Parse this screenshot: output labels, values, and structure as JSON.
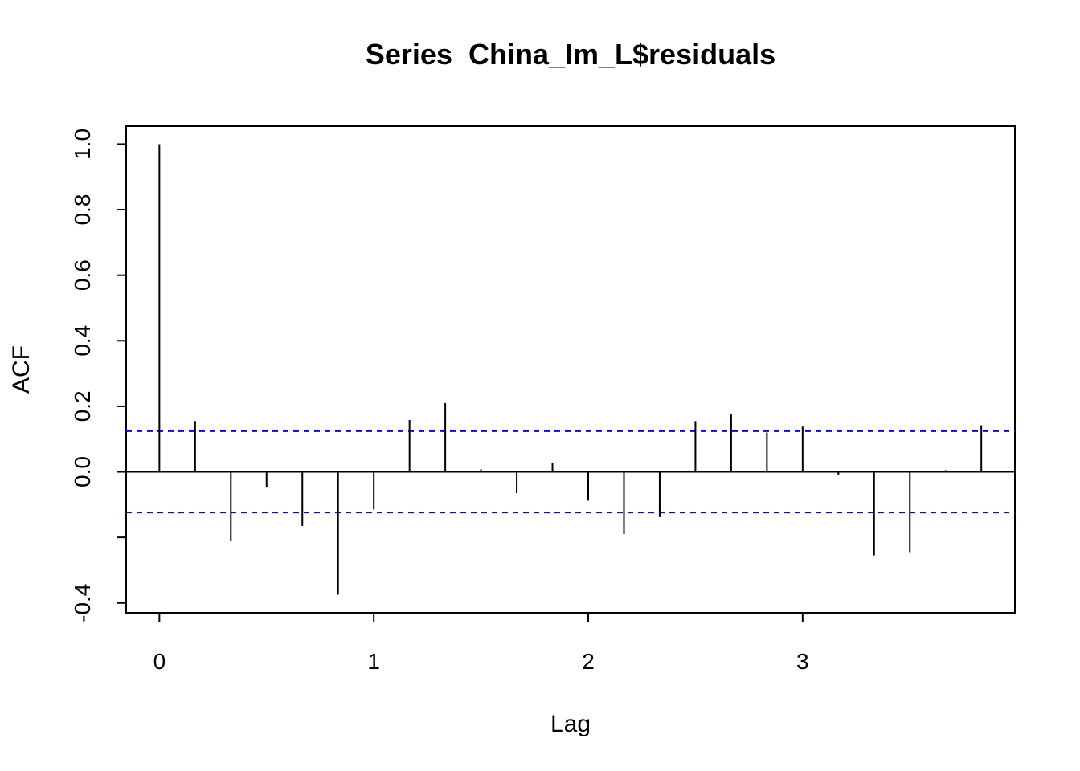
{
  "chart_data": {
    "type": "bar",
    "title": "Series  China_Im_L$residuals",
    "xlabel": "Lag",
    "ylabel": "ACF",
    "xlim": [
      -0.155,
      3.99
    ],
    "ylim": [
      -0.43,
      1.055
    ],
    "x_ticks": [
      0,
      1,
      2,
      3
    ],
    "x_tick_labels": [
      "0",
      "1",
      "2",
      "3"
    ],
    "y_ticks": [
      -0.4,
      -0.2,
      0.0,
      0.2,
      0.4,
      0.6,
      0.8,
      1.0
    ],
    "y_tick_labels": [
      "-0.4",
      "",
      "0.0",
      "0.2",
      "0.4",
      "0.6",
      "0.8",
      "1.0"
    ],
    "grid": false,
    "lags": [
      0,
      0.1667,
      0.3333,
      0.5,
      0.6667,
      0.8333,
      1.0,
      1.1667,
      1.3333,
      1.5,
      1.6667,
      1.8333,
      2.0,
      2.1667,
      2.3333,
      2.5,
      2.6667,
      2.8333,
      3.0,
      3.1667,
      3.3333,
      3.5,
      3.6667,
      3.8333
    ],
    "acf": [
      1.0,
      0.155,
      -0.21,
      -0.048,
      -0.165,
      -0.375,
      -0.115,
      0.158,
      0.21,
      0.008,
      -0.065,
      0.028,
      -0.088,
      -0.19,
      -0.138,
      0.155,
      0.175,
      0.12,
      0.138,
      -0.01,
      -0.255,
      -0.245,
      0.005,
      0.142
    ],
    "confidence_bound": 0.124,
    "colors": {
      "bars": "#000000",
      "confidence": "#0000ff",
      "zero_line": "#000000",
      "frame": "#000000"
    }
  }
}
